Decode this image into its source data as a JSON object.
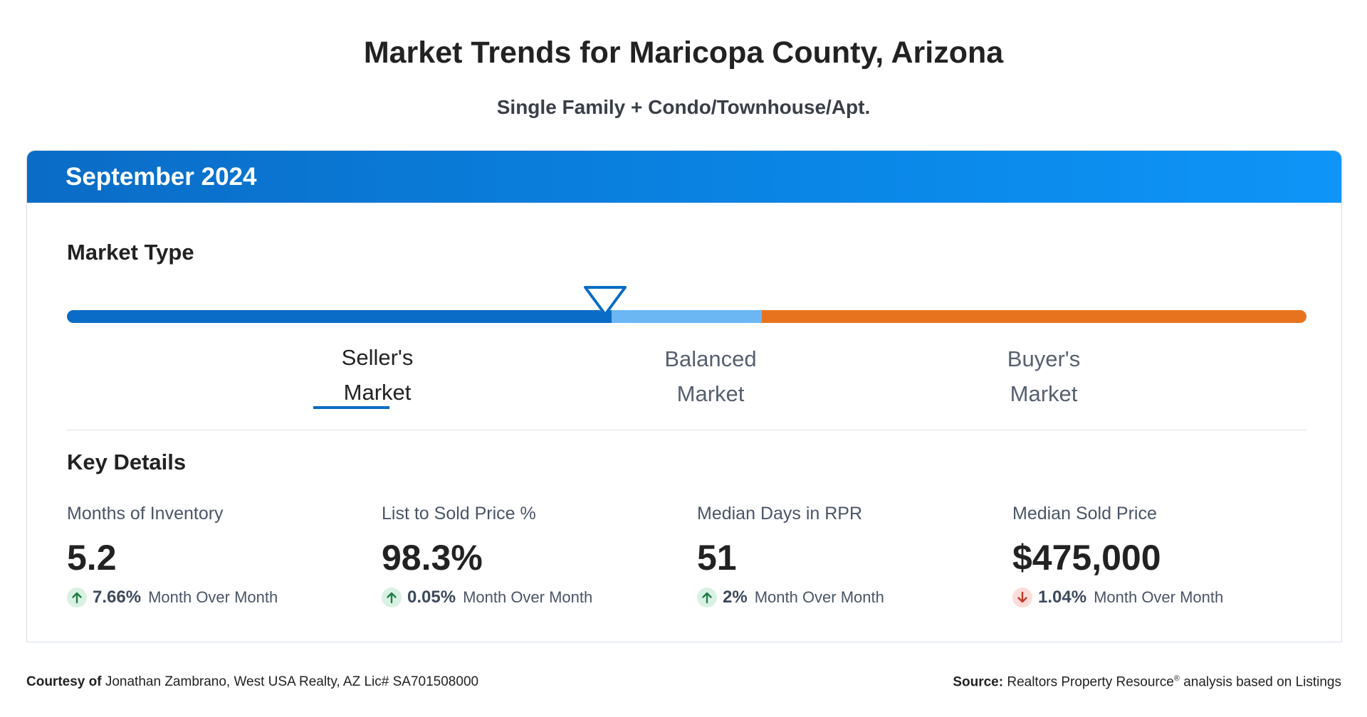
{
  "title": "Market Trends for Maricopa County, Arizona",
  "subtitle": "Single Family + Condo/Townhouse/Apt.",
  "period": "September 2024",
  "market_type": {
    "label": "Market Type",
    "current": "Seller's Market",
    "options": [
      {
        "line1": "Seller's",
        "line2": "Market"
      },
      {
        "line1": "Balanced",
        "line2": "Market"
      },
      {
        "line1": "Buyer's",
        "line2": "Market"
      }
    ],
    "colors": {
      "seller": "#0a6cc6",
      "balanced": "#6ab7f4",
      "buyer": "#e8731f"
    }
  },
  "key_details": {
    "label": "Key Details",
    "metrics": [
      {
        "name": "Months of Inventory",
        "value": "5.2",
        "change": "7.66%",
        "change_text": "Month Over Month",
        "direction": "up"
      },
      {
        "name": "List to Sold Price %",
        "value": "98.3%",
        "change": "0.05%",
        "change_text": "Month Over Month",
        "direction": "up"
      },
      {
        "name": "Median Days in RPR",
        "value": "51",
        "change": "2%",
        "change_text": "Month Over Month",
        "direction": "up"
      },
      {
        "name": "Median Sold Price",
        "value": "$475,000",
        "change": "1.04%",
        "change_text": "Month Over Month",
        "direction": "down"
      }
    ]
  },
  "footer": {
    "courtesy_label": "Courtesy of",
    "courtesy_text": "Jonathan Zambrano, West USA Realty, AZ Lic# SA701508000",
    "source_label": "Source:",
    "source_text": "Realtors Property Resource",
    "source_sup": "®",
    "source_suffix": "analysis based on Listings"
  }
}
